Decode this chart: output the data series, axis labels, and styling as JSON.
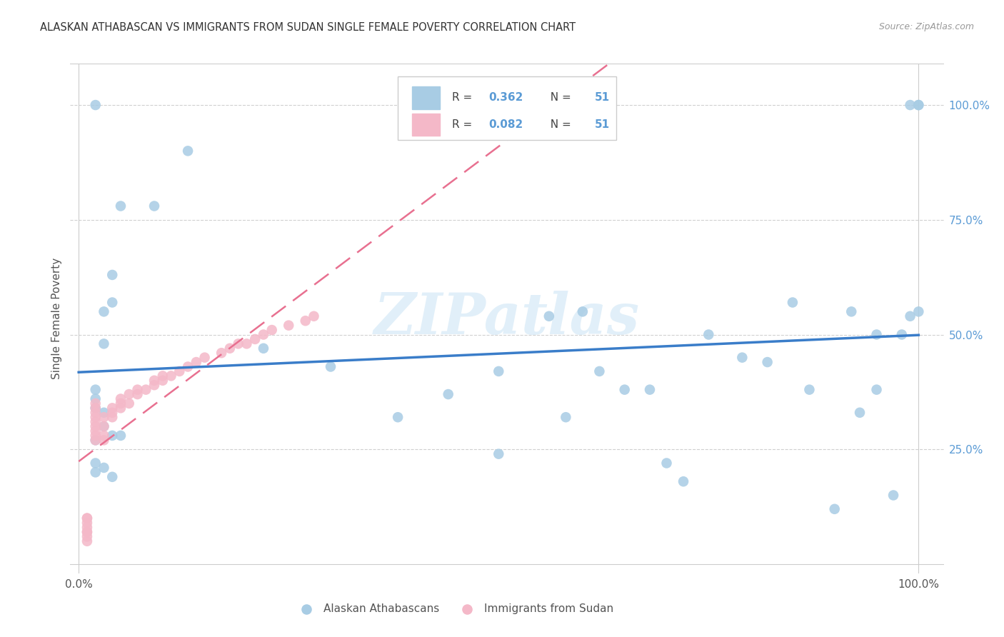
{
  "title": "ALASKAN ATHABASCAN VS IMMIGRANTS FROM SUDAN SINGLE FEMALE POVERTY CORRELATION CHART",
  "source": "Source: ZipAtlas.com",
  "ylabel": "Single Female Poverty",
  "ylabel_right_ticks": [
    "100.0%",
    "75.0%",
    "50.0%",
    "25.0%"
  ],
  "ylabel_right_vals": [
    1.0,
    0.75,
    0.5,
    0.25
  ],
  "R_blue": 0.362,
  "R_pink": 0.082,
  "N_blue": 51,
  "N_pink": 51,
  "blue_color": "#a8cce4",
  "pink_color": "#f4b8c8",
  "blue_line_color": "#3a7dc9",
  "pink_line_color": "#e87090",
  "watermark": "ZIPatlas",
  "blue_x": [
    0.02,
    0.13,
    0.09,
    0.05,
    0.04,
    0.04,
    0.03,
    0.03,
    0.02,
    0.02,
    0.02,
    0.03,
    0.03,
    0.04,
    0.05,
    0.02,
    0.02,
    0.02,
    0.03,
    0.04,
    0.22,
    0.3,
    0.38,
    0.44,
    0.5,
    0.5,
    0.56,
    0.58,
    0.6,
    0.62,
    0.65,
    0.68,
    0.7,
    0.72,
    0.75,
    0.79,
    0.82,
    0.85,
    0.87,
    0.9,
    0.92,
    0.93,
    0.95,
    0.95,
    0.97,
    0.98,
    0.99,
    0.99,
    1.0,
    1.0,
    1.0
  ],
  "blue_y": [
    1.0,
    0.9,
    0.78,
    0.78,
    0.63,
    0.57,
    0.55,
    0.48,
    0.38,
    0.36,
    0.34,
    0.33,
    0.3,
    0.28,
    0.28,
    0.27,
    0.22,
    0.2,
    0.21,
    0.19,
    0.47,
    0.43,
    0.32,
    0.37,
    0.42,
    0.24,
    0.54,
    0.32,
    0.55,
    0.42,
    0.38,
    0.38,
    0.22,
    0.18,
    0.5,
    0.45,
    0.44,
    0.57,
    0.38,
    0.12,
    0.55,
    0.33,
    0.5,
    0.38,
    0.15,
    0.5,
    0.54,
    1.0,
    0.55,
    1.0,
    1.0
  ],
  "pink_x": [
    0.01,
    0.01,
    0.01,
    0.01,
    0.01,
    0.01,
    0.01,
    0.01,
    0.02,
    0.02,
    0.02,
    0.02,
    0.02,
    0.02,
    0.02,
    0.02,
    0.02,
    0.03,
    0.03,
    0.03,
    0.03,
    0.04,
    0.04,
    0.04,
    0.05,
    0.05,
    0.05,
    0.06,
    0.06,
    0.07,
    0.07,
    0.08,
    0.09,
    0.09,
    0.1,
    0.1,
    0.11,
    0.12,
    0.13,
    0.14,
    0.15,
    0.17,
    0.18,
    0.19,
    0.2,
    0.21,
    0.22,
    0.23,
    0.25,
    0.27,
    0.28
  ],
  "pink_y": [
    0.05,
    0.06,
    0.07,
    0.07,
    0.08,
    0.09,
    0.1,
    0.1,
    0.27,
    0.28,
    0.29,
    0.3,
    0.31,
    0.32,
    0.33,
    0.34,
    0.35,
    0.27,
    0.28,
    0.3,
    0.32,
    0.32,
    0.33,
    0.34,
    0.34,
    0.35,
    0.36,
    0.35,
    0.37,
    0.37,
    0.38,
    0.38,
    0.39,
    0.4,
    0.4,
    0.41,
    0.41,
    0.42,
    0.43,
    0.44,
    0.45,
    0.46,
    0.47,
    0.48,
    0.48,
    0.49,
    0.5,
    0.51,
    0.52,
    0.53,
    0.54
  ],
  "grid_color": "#d0d0d0",
  "background_color": "#ffffff"
}
